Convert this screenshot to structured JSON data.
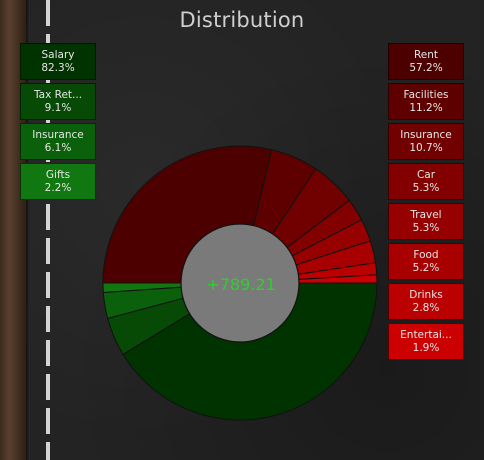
{
  "title": "Distribution",
  "center_value": "+789.21",
  "colors": {
    "income_dark": "#003300",
    "income_light": "#117711",
    "expense_dark": "#4d0000",
    "expense_light": "#cc0000",
    "center_fill": "#7a7a7a",
    "center_text": "#33cc33"
  },
  "income": {
    "items": [
      {
        "label": "Salary",
        "percent": "82.3%",
        "value": 82.3
      },
      {
        "label": "Tax Ret...",
        "percent": "9.1%",
        "value": 9.1
      },
      {
        "label": "Insurance",
        "percent": "6.1%",
        "value": 6.1
      },
      {
        "label": "Gifts",
        "percent": "2.2%",
        "value": 2.2
      }
    ]
  },
  "expenses": {
    "items": [
      {
        "label": "Rent",
        "percent": "57.2%",
        "value": 57.2
      },
      {
        "label": "Facilities",
        "percent": "11.2%",
        "value": 11.2
      },
      {
        "label": "Insurance",
        "percent": "10.7%",
        "value": 10.7
      },
      {
        "label": "Car",
        "percent": "5.3%",
        "value": 5.3
      },
      {
        "label": "Travel",
        "percent": "5.3%",
        "value": 5.3
      },
      {
        "label": "Food",
        "percent": "5.2%",
        "value": 5.2
      },
      {
        "label": "Drinks",
        "percent": "2.8%",
        "value": 2.8
      },
      {
        "label": "Entertai...",
        "percent": "1.9%",
        "value": 1.9
      }
    ]
  },
  "chart_data": {
    "type": "pie",
    "title": "Distribution",
    "series": [
      {
        "values": [
          82.3,
          9.1,
          6.1,
          2.2
        ]
      },
      {
        "values": [
          57.2,
          11.2,
          10.7,
          5.3,
          5.3,
          5.2,
          2.8,
          1.9
        ]
      }
    ],
    "center_label": "+789.21",
    "legend_placement": "left and right"
  }
}
